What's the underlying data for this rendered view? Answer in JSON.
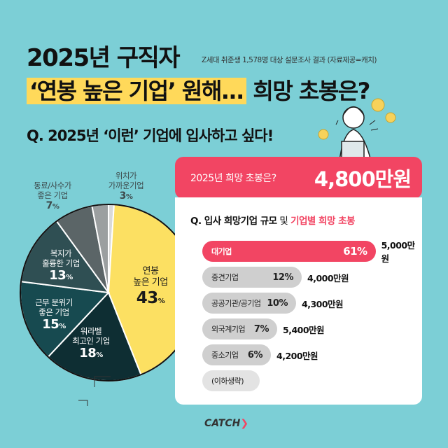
{
  "header": {
    "title_line1": "2025년 구직자",
    "source": "Z세대 취준생 1,578명 대상 설문조사 결과 (자료제공=캐치)",
    "title_line2_highlight": "‘연봉 높은 기업’ 원해...",
    "title_line2_rest": " 희망 초봉은?",
    "question": "Q. 2025년 ‘이런’ 기업에 입사하고 싶다!"
  },
  "colors": {
    "background": "#7ccfd6",
    "accent": "#f24563",
    "highlight": "#ffd95a"
  },
  "chart_data": [
    {
      "type": "pie",
      "slices": [
        {
          "label": "",
          "value": 1,
          "color": "#d9d9d9"
        },
        {
          "label": "연봉 높은 기업",
          "value": 43,
          "color": "#fce062"
        },
        {
          "label": "워라벨 최고인 기업",
          "value": 18,
          "color": "#0e2e33"
        },
        {
          "label": "근무 분위기 좋은 기업",
          "value": 15,
          "color": "#174a50"
        },
        {
          "label": "복지가 훌륭한 기업",
          "value": 13,
          "color": "#2f4f53"
        },
        {
          "label": "동료/사수가 좋은 기업",
          "value": 7,
          "color": "#5b6567"
        },
        {
          "label": "위치가 가까운기업",
          "value": 3,
          "color": "#9b9fa0"
        }
      ],
      "labels": {
        "salary": {
          "l1": "연봉",
          "l2": "높은 기업",
          "pct": "43"
        },
        "wlb": {
          "l1": "워라벨",
          "l2": "최고인 기업",
          "pct": "18"
        },
        "culture": {
          "l1": "근무 분위기",
          "l2": "좋은 기업",
          "pct": "15"
        },
        "welfare": {
          "l1": "복지가",
          "l2": "훌륭한 기업",
          "pct": "13"
        },
        "peers": {
          "l1": "동료/사수가",
          "l2": "좋은 기업",
          "pct": "7"
        },
        "location": {
          "l1": "위치가",
          "l2": "가까운기업",
          "pct": "3"
        },
        "unit": "%"
      }
    },
    {
      "type": "bar",
      "title_prefix": "Q. 입사 희망기업 규모",
      "title_mid": " 및 ",
      "title_accent": "기업별 희망 초봉",
      "categories": [
        "대기업",
        "중견기업",
        "공공기관/공기업",
        "외국계기업",
        "중소기업",
        "(이하생략)"
      ],
      "values": [
        61,
        12,
        10,
        7,
        6,
        null
      ],
      "pct_labels": [
        "61%",
        "12%",
        "10%",
        "7%",
        "6%",
        ""
      ],
      "salaries": [
        "5,000만원",
        "4,000만원",
        "4,300만원",
        "5,400만원",
        "4,200만원",
        ""
      ]
    }
  ],
  "summary": {
    "question": "2025년 희망 초봉은?",
    "value": "4,800만원"
  },
  "logo": "CATCH"
}
